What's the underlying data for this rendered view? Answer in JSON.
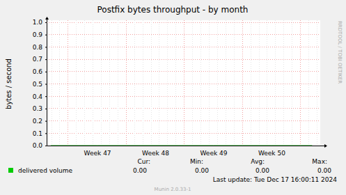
{
  "chart_data": {
    "type": "line",
    "title": "Postfix bytes throughput - by month",
    "ylabel": "bytes / second",
    "side_text": "RRDTOOL / TOBI OETIKER",
    "last_update": "Last update:  Tue Dec 17 16:00:11 2024",
    "footer": "Munin 2.0.33-1",
    "x": [
      46.7,
      47,
      47.5,
      48,
      48.5,
      49,
      49.5,
      50,
      50.5,
      51,
      51.2
    ],
    "xlim": [
      46.63,
      51.34
    ],
    "xticks": [
      {
        "value": 47.5,
        "label": "Week 47"
      },
      {
        "value": 48.5,
        "label": "Week 48"
      },
      {
        "value": 49.5,
        "label": "Week 49"
      },
      {
        "value": 50.5,
        "label": "Week 50"
      }
    ],
    "ylim": [
      0,
      1
    ],
    "yticks": [
      {
        "value": 0,
        "label": "0.0"
      },
      0.1,
      0.2,
      0.3,
      0.4,
      0.5,
      0.6,
      0.7,
      0.8,
      0.9,
      {
        "value": 1,
        "label": "1.0"
      }
    ],
    "grid": true,
    "legend": "bottom",
    "legend_columns": [
      "Cur:",
      "Min:",
      "Avg:",
      "Max:"
    ],
    "series": [
      {
        "name": "delivered volume",
        "color": "#00cc00",
        "values": [
          0,
          0,
          0,
          0,
          0,
          0,
          0,
          0,
          0,
          0,
          0
        ],
        "stats": [
          0,
          0,
          0,
          0
        ],
        "stats_labels": [
          "0.00",
          "0.00",
          "0.00",
          "0.00"
        ]
      }
    ]
  }
}
